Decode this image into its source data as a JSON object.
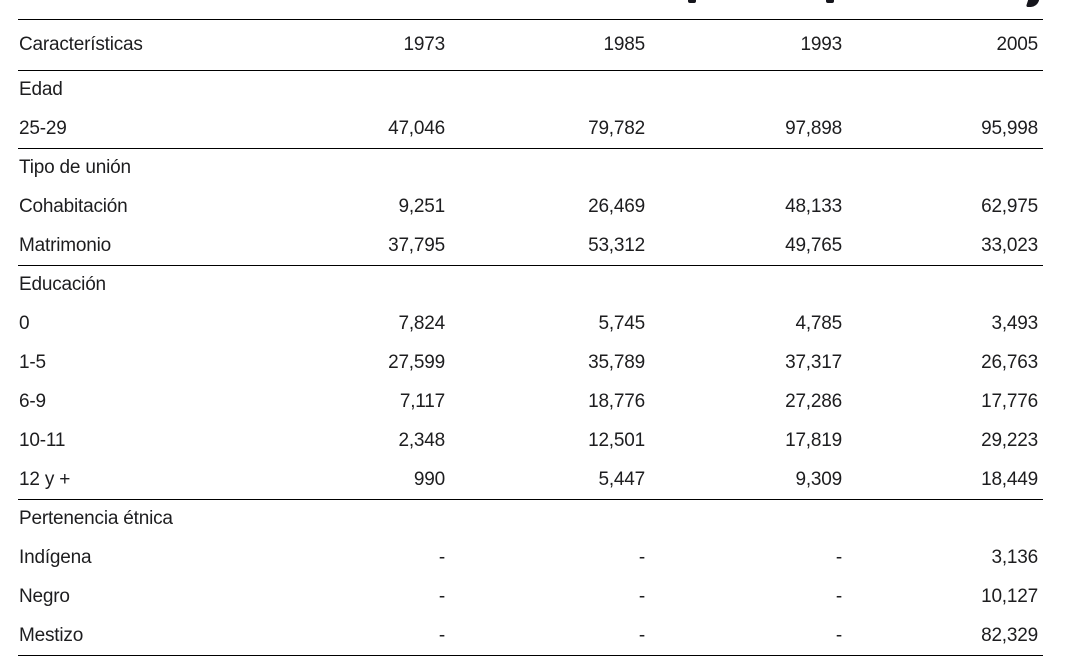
{
  "top_fragment": {
    "marks": [
      "comma-mark",
      "comma-mark",
      "descender-mark"
    ]
  },
  "table": {
    "columns": [
      "Características",
      "1973",
      "1985",
      "1993",
      "2005"
    ],
    "sections": [
      {
        "label": "Edad",
        "rows": [
          {
            "label": "25-29",
            "values": [
              "47,046",
              "79,782",
              "97,898",
              "95,998"
            ]
          }
        ]
      },
      {
        "label": "Tipo de unión",
        "rows": [
          {
            "label": "Cohabitación",
            "values": [
              "9,251",
              "26,469",
              "48,133",
              "62,975"
            ]
          },
          {
            "label": "Matrimonio",
            "values": [
              "37,795",
              "53,312",
              "49,765",
              "33,023"
            ]
          }
        ]
      },
      {
        "label": "Educación",
        "rows": [
          {
            "label": "0",
            "values": [
              "7,824",
              "5,745",
              "4,785",
              "3,493"
            ]
          },
          {
            "label": "1-5",
            "values": [
              "27,599",
              "35,789",
              "37,317",
              "26,763"
            ]
          },
          {
            "label": "6-9",
            "values": [
              "7,117",
              "18,776",
              "27,286",
              "17,776"
            ]
          },
          {
            "label": "10-11",
            "values": [
              "2,348",
              "12,501",
              "17,819",
              "29,223"
            ]
          },
          {
            "label": "12 y +",
            "values": [
              "990",
              "5,447",
              "9,309",
              "18,449"
            ]
          }
        ]
      },
      {
        "label": "Pertenencia étnica",
        "rows": [
          {
            "label": "Indígena",
            "values": [
              "-",
              "-",
              "-",
              "3,136"
            ]
          },
          {
            "label": "Negro",
            "values": [
              "-",
              "-",
              "-",
              "10,127"
            ]
          },
          {
            "label": "Mestizo",
            "values": [
              "-",
              "-",
              "-",
              "82,329"
            ]
          }
        ]
      }
    ]
  }
}
